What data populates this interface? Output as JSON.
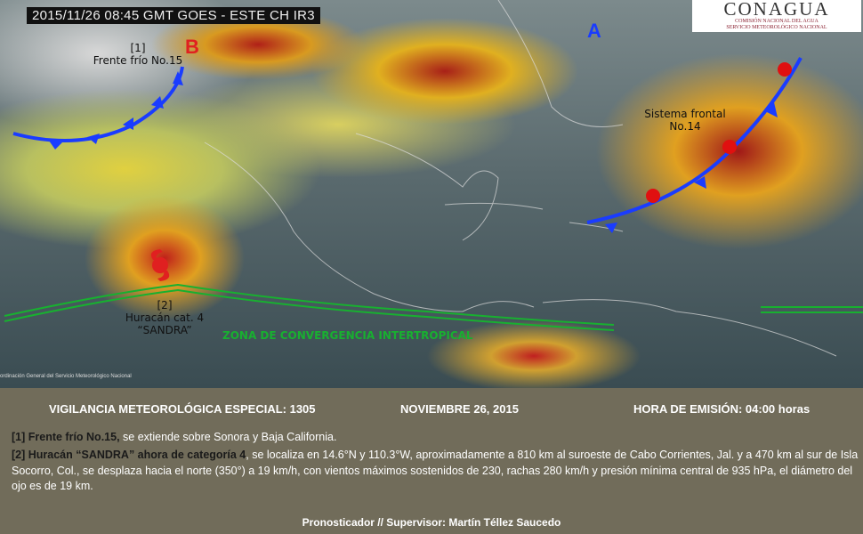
{
  "map": {
    "title": "2015/11/26 08:45 GMT GOES - ESTE CH IR3",
    "logo": {
      "name": "CONAGUA",
      "line1": "COMISIÓN NACIONAL DEL AGUA",
      "line2": "SERVICIO METEOROLÓGICO NACIONAL"
    },
    "pressure_high": "A",
    "pressure_low": "B",
    "front1_label": [
      "[1]",
      "Frente frío No.15"
    ],
    "front2_label": [
      "Sistema frontal",
      "No.14"
    ],
    "hurricane_label": [
      "[2]",
      "Huracán cat. 4",
      "“SANDRA”"
    ],
    "itcz_label": "ZONA DE CONVERGENCIA  INTERTROPICAL",
    "credit": "ordinación General del Servicio Meteorológico Nacional",
    "colors": {
      "cold_front": "#1a3cff",
      "warm_front": "#e01010",
      "itcz": "#18b030",
      "low": "#e02020",
      "high": "#1a3cff"
    }
  },
  "bulletin": {
    "header_left": "VIGILANCIA  METEOROLÓGICA  ESPECIAL: 1305",
    "header_center": "NOVIEMBRE 26, 2015",
    "header_right": "HORA DE EMISIÓN:  04:00  horas",
    "item1_bold": "[1] Frente frío No.15,",
    "item1_text": " se extiende sobre Sonora y Baja California.",
    "item2_bold": "[2] Huracán “SANDRA” ahora de categoría 4",
    "item2_text": ", se localiza en 14.6°N y 110.3°W, aproximadamente a 810 km al suroeste de Cabo Corrientes, Jal. y a 470 km al sur de Isla Socorro, Col., se desplaza hacia el norte (350°)  a 19 km/h, con vientos máximos sostenidos de 230, rachas 280 km/h y presión mínima central de 935 hPa, el diámetro del ojo es de 19 km.",
    "footer": "Pronosticador   //  Supervisor: Martín Téllez Saucedo"
  }
}
